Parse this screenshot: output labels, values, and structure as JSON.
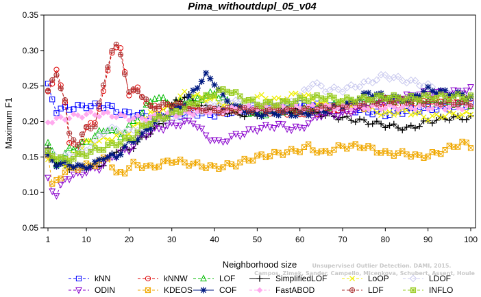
{
  "chart_data": {
    "type": "line",
    "title": "Pima_withoutdupl_05_v04",
    "xlabel": "Neighborhood size",
    "ylabel": "Maximum F1",
    "xlim": [
      1,
      100
    ],
    "ylim": [
      0.05,
      0.35
    ],
    "xticks": [
      "1",
      "10",
      "20",
      "30",
      "40",
      "50",
      "60",
      "70",
      "80",
      "90",
      "100"
    ],
    "yticks": [
      "0.05",
      "0.10",
      "0.15",
      "0.20",
      "0.25",
      "0.30",
      "0.35"
    ],
    "grid": false,
    "legend_position": "bottom",
    "series": [
      {
        "name": "kNN",
        "color": "#0000ff",
        "marker": "square",
        "dash": "4,3",
        "anchors": [
          [
            1,
            0.25
          ],
          [
            2,
            0.232
          ],
          [
            3,
            0.215
          ],
          [
            5,
            0.218
          ],
          [
            10,
            0.222
          ],
          [
            15,
            0.222
          ],
          [
            18,
            0.212
          ],
          [
            22,
            0.21
          ],
          [
            26,
            0.205
          ],
          [
            30,
            0.208
          ],
          [
            35,
            0.212
          ],
          [
            40,
            0.21
          ],
          [
            45,
            0.215
          ],
          [
            50,
            0.22
          ],
          [
            55,
            0.225
          ],
          [
            60,
            0.222
          ],
          [
            65,
            0.222
          ],
          [
            70,
            0.218
          ],
          [
            75,
            0.215
          ],
          [
            80,
            0.21
          ],
          [
            85,
            0.215
          ],
          [
            90,
            0.218
          ],
          [
            95,
            0.22
          ],
          [
            100,
            0.225
          ]
        ]
      },
      {
        "name": "kNNW",
        "color": "#dd0000",
        "marker": "circle",
        "dash": "4,3",
        "anchors": [
          [
            1,
            0.245
          ],
          [
            2,
            0.255
          ],
          [
            3,
            0.27
          ],
          [
            4,
            0.25
          ],
          [
            5,
            0.23
          ],
          [
            6,
            0.17
          ],
          [
            8,
            0.16
          ],
          [
            10,
            0.19
          ],
          [
            12,
            0.2
          ],
          [
            14,
            0.24
          ],
          [
            15,
            0.27
          ],
          [
            16,
            0.3
          ],
          [
            17,
            0.305
          ],
          [
            18,
            0.3
          ],
          [
            19,
            0.27
          ],
          [
            20,
            0.24
          ],
          [
            22,
            0.245
          ],
          [
            25,
            0.22
          ],
          [
            30,
            0.222
          ],
          [
            35,
            0.218
          ],
          [
            40,
            0.215
          ],
          [
            50,
            0.215
          ],
          [
            60,
            0.212
          ],
          [
            70,
            0.215
          ],
          [
            80,
            0.225
          ],
          [
            90,
            0.228
          ],
          [
            100,
            0.23
          ]
        ]
      },
      {
        "name": "LOF",
        "color": "#00bb00",
        "marker": "triangle",
        "dash": "4,3",
        "anchors": [
          [
            1,
            0.17
          ],
          [
            3,
            0.14
          ],
          [
            6,
            0.16
          ],
          [
            10,
            0.17
          ],
          [
            12,
            0.18
          ],
          [
            15,
            0.19
          ],
          [
            18,
            0.18
          ],
          [
            22,
            0.205
          ],
          [
            26,
            0.235
          ],
          [
            30,
            0.225
          ],
          [
            35,
            0.23
          ],
          [
            40,
            0.24
          ],
          [
            45,
            0.22
          ],
          [
            50,
            0.21
          ],
          [
            55,
            0.215
          ],
          [
            60,
            0.215
          ],
          [
            70,
            0.225
          ],
          [
            80,
            0.23
          ],
          [
            90,
            0.228
          ],
          [
            100,
            0.225
          ]
        ]
      },
      {
        "name": "SimplifiedLOF",
        "color": "#000000",
        "marker": "plus",
        "dash": "none",
        "anchors": [
          [
            1,
            0.16
          ],
          [
            3,
            0.14
          ],
          [
            6,
            0.135
          ],
          [
            10,
            0.135
          ],
          [
            14,
            0.14
          ],
          [
            17,
            0.16
          ],
          [
            20,
            0.16
          ],
          [
            24,
            0.18
          ],
          [
            28,
            0.2
          ],
          [
            31,
            0.23
          ],
          [
            34,
            0.235
          ],
          [
            37,
            0.22
          ],
          [
            40,
            0.22
          ],
          [
            45,
            0.21
          ],
          [
            50,
            0.21
          ],
          [
            55,
            0.215
          ],
          [
            60,
            0.215
          ],
          [
            65,
            0.21
          ],
          [
            70,
            0.205
          ],
          [
            75,
            0.2
          ],
          [
            80,
            0.195
          ],
          [
            85,
            0.19
          ],
          [
            88,
            0.195
          ],
          [
            90,
            0.2
          ],
          [
            95,
            0.205
          ],
          [
            100,
            0.205
          ]
        ]
      },
      {
        "name": "LoOP",
        "color": "#eeee00",
        "marker": "x",
        "dash": "4,3",
        "anchors": [
          [
            1,
            0.15
          ],
          [
            5,
            0.14
          ],
          [
            10,
            0.17
          ],
          [
            15,
            0.175
          ],
          [
            20,
            0.185
          ],
          [
            25,
            0.21
          ],
          [
            30,
            0.22
          ],
          [
            33,
            0.24
          ],
          [
            36,
            0.235
          ],
          [
            40,
            0.23
          ],
          [
            45,
            0.22
          ],
          [
            50,
            0.235
          ],
          [
            55,
            0.23
          ],
          [
            60,
            0.24
          ],
          [
            65,
            0.225
          ],
          [
            70,
            0.225
          ],
          [
            75,
            0.22
          ],
          [
            80,
            0.21
          ],
          [
            85,
            0.215
          ],
          [
            90,
            0.205
          ],
          [
            95,
            0.21
          ],
          [
            100,
            0.21
          ]
        ]
      },
      {
        "name": "LDOF",
        "color": "#c8c8ee",
        "marker": "diamond",
        "dash": "4,3",
        "anchors": [
          [
            1,
            0.155
          ],
          [
            5,
            0.15
          ],
          [
            10,
            0.16
          ],
          [
            15,
            0.19
          ],
          [
            20,
            0.185
          ],
          [
            25,
            0.2
          ],
          [
            30,
            0.2
          ],
          [
            35,
            0.21
          ],
          [
            40,
            0.225
          ],
          [
            45,
            0.23
          ],
          [
            50,
            0.22
          ],
          [
            55,
            0.22
          ],
          [
            60,
            0.235
          ],
          [
            63,
            0.255
          ],
          [
            66,
            0.245
          ],
          [
            70,
            0.245
          ],
          [
            73,
            0.25
          ],
          [
            76,
            0.255
          ],
          [
            80,
            0.265
          ],
          [
            83,
            0.26
          ],
          [
            87,
            0.255
          ],
          [
            90,
            0.25
          ],
          [
            94,
            0.24
          ],
          [
            100,
            0.24
          ]
        ]
      },
      {
        "name": "ODIN",
        "color": "#8800cc",
        "marker": "triangle-down",
        "dash": "4,3",
        "anchors": [
          [
            1,
            0.12
          ],
          [
            2,
            0.105
          ],
          [
            3,
            0.095
          ],
          [
            5,
            0.12
          ],
          [
            8,
            0.125
          ],
          [
            10,
            0.13
          ],
          [
            13,
            0.135
          ],
          [
            16,
            0.15
          ],
          [
            20,
            0.16
          ],
          [
            23,
            0.18
          ],
          [
            27,
            0.19
          ],
          [
            30,
            0.195
          ],
          [
            35,
            0.2
          ],
          [
            38,
            0.18
          ],
          [
            41,
            0.17
          ],
          [
            45,
            0.18
          ],
          [
            50,
            0.19
          ],
          [
            55,
            0.195
          ],
          [
            58,
            0.19
          ],
          [
            60,
            0.19
          ],
          [
            65,
            0.21
          ],
          [
            70,
            0.21
          ],
          [
            75,
            0.22
          ],
          [
            80,
            0.23
          ],
          [
            85,
            0.235
          ],
          [
            90,
            0.24
          ],
          [
            95,
            0.24
          ],
          [
            100,
            0.245
          ]
        ]
      },
      {
        "name": "KDEOS",
        "color": "#f0a800",
        "marker": "square-x",
        "dash": "4,3",
        "anchors": [
          [
            1,
            0.155
          ],
          [
            2,
            0.11
          ],
          [
            3,
            0.115
          ],
          [
            5,
            0.13
          ],
          [
            8,
            0.135
          ],
          [
            12,
            0.14
          ],
          [
            15,
            0.15
          ],
          [
            17,
            0.125
          ],
          [
            19,
            0.13
          ],
          [
            21,
            0.14
          ],
          [
            25,
            0.135
          ],
          [
            30,
            0.145
          ],
          [
            35,
            0.14
          ],
          [
            40,
            0.135
          ],
          [
            45,
            0.14
          ],
          [
            50,
            0.15
          ],
          [
            55,
            0.155
          ],
          [
            60,
            0.16
          ],
          [
            62,
            0.165
          ],
          [
            65,
            0.155
          ],
          [
            70,
            0.165
          ],
          [
            75,
            0.165
          ],
          [
            80,
            0.155
          ],
          [
            85,
            0.155
          ],
          [
            88,
            0.15
          ],
          [
            92,
            0.155
          ],
          [
            96,
            0.165
          ],
          [
            98,
            0.17
          ],
          [
            100,
            0.165
          ]
        ]
      },
      {
        "name": "COF",
        "color": "#001a80",
        "marker": "star",
        "dash": "none",
        "anchors": [
          [
            1,
            0.15
          ],
          [
            3,
            0.14
          ],
          [
            6,
            0.14
          ],
          [
            9,
            0.135
          ],
          [
            12,
            0.14
          ],
          [
            14,
            0.15
          ],
          [
            17,
            0.15
          ],
          [
            20,
            0.17
          ],
          [
            23,
            0.18
          ],
          [
            26,
            0.2
          ],
          [
            30,
            0.215
          ],
          [
            33,
            0.225
          ],
          [
            36,
            0.25
          ],
          [
            38,
            0.265
          ],
          [
            40,
            0.255
          ],
          [
            42,
            0.235
          ],
          [
            45,
            0.22
          ],
          [
            48,
            0.215
          ],
          [
            50,
            0.21
          ],
          [
            55,
            0.212
          ],
          [
            60,
            0.21
          ],
          [
            65,
            0.215
          ],
          [
            68,
            0.22
          ],
          [
            72,
            0.225
          ],
          [
            76,
            0.24
          ],
          [
            80,
            0.235
          ],
          [
            85,
            0.23
          ],
          [
            90,
            0.245
          ],
          [
            95,
            0.24
          ],
          [
            100,
            0.235
          ]
        ]
      },
      {
        "name": "FastABOD",
        "color": "#ffaaee",
        "marker": "diamond-filled",
        "dash": "4,3",
        "anchors": [
          [
            1,
            0.2
          ],
          [
            5,
            0.205
          ],
          [
            10,
            0.21
          ],
          [
            15,
            0.21
          ],
          [
            20,
            0.205
          ],
          [
            25,
            0.205
          ],
          [
            30,
            0.21
          ],
          [
            40,
            0.215
          ],
          [
            50,
            0.22
          ],
          [
            60,
            0.22
          ],
          [
            70,
            0.22
          ],
          [
            80,
            0.22
          ],
          [
            90,
            0.22
          ],
          [
            100,
            0.22
          ]
        ]
      },
      {
        "name": "LDF",
        "color": "#aa3333",
        "marker": "circle-plus",
        "dash": "4,3",
        "anchors": [
          [
            1,
            0.245
          ],
          [
            2,
            0.255
          ],
          [
            3,
            0.265
          ],
          [
            4,
            0.25
          ],
          [
            5,
            0.23
          ],
          [
            6,
            0.18
          ],
          [
            8,
            0.17
          ],
          [
            10,
            0.19
          ],
          [
            12,
            0.195
          ],
          [
            14,
            0.25
          ],
          [
            15,
            0.28
          ],
          [
            16,
            0.3
          ],
          [
            17,
            0.305
          ],
          [
            18,
            0.295
          ],
          [
            19,
            0.27
          ],
          [
            20,
            0.24
          ],
          [
            22,
            0.245
          ],
          [
            25,
            0.22
          ],
          [
            30,
            0.225
          ],
          [
            40,
            0.215
          ],
          [
            50,
            0.218
          ],
          [
            60,
            0.215
          ],
          [
            70,
            0.222
          ],
          [
            80,
            0.23
          ],
          [
            90,
            0.228
          ],
          [
            100,
            0.225
          ]
        ]
      },
      {
        "name": "INFLO",
        "color": "#99cc22",
        "marker": "square-star",
        "dash": "4,3",
        "anchors": [
          [
            1,
            0.155
          ],
          [
            5,
            0.145
          ],
          [
            10,
            0.155
          ],
          [
            15,
            0.165
          ],
          [
            20,
            0.175
          ],
          [
            25,
            0.2
          ],
          [
            30,
            0.21
          ],
          [
            35,
            0.225
          ],
          [
            40,
            0.24
          ],
          [
            43,
            0.245
          ],
          [
            46,
            0.235
          ],
          [
            50,
            0.225
          ],
          [
            55,
            0.225
          ],
          [
            60,
            0.23
          ],
          [
            65,
            0.235
          ],
          [
            70,
            0.23
          ],
          [
            75,
            0.232
          ],
          [
            80,
            0.235
          ],
          [
            85,
            0.232
          ],
          [
            90,
            0.235
          ],
          [
            95,
            0.235
          ],
          [
            100,
            0.235
          ]
        ]
      }
    ]
  },
  "watermark": {
    "line1": "Unsupervised Outlier Detection. DAMI, 2015.",
    "line2": "Campos, Zimek, Sander, Campello, Micenkova, Schubert, Assent, Houle"
  }
}
